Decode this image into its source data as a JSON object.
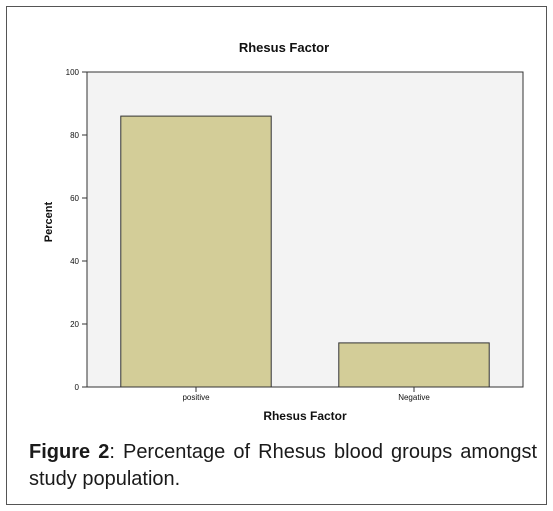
{
  "colors": {
    "bar_fill": "#d3cd98",
    "bar_stroke": "#333333",
    "plot_background": "#f3f3f3",
    "axis": "#333333"
  },
  "chart_data": {
    "type": "bar",
    "title": "Rhesus Factor",
    "xlabel": "Rhesus Factor",
    "ylabel": "Percent",
    "categories": [
      "positive",
      "Negative"
    ],
    "values": [
      86,
      14
    ],
    "ylim": [
      0,
      100
    ],
    "yticks": [
      0,
      20,
      40,
      60,
      80,
      100
    ],
    "grid": false,
    "legend": "none"
  },
  "caption": {
    "label": "Figure 2",
    "text": ": Percentage of Rhesus blood groups amongst study population."
  }
}
